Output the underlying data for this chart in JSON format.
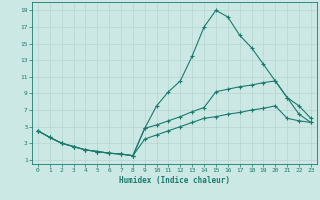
{
  "xlabel": "Humidex (Indice chaleur)",
  "xlim": [
    -0.5,
    23.5
  ],
  "ylim": [
    0.5,
    20
  ],
  "xticks": [
    0,
    1,
    2,
    3,
    4,
    5,
    6,
    7,
    8,
    9,
    10,
    11,
    12,
    13,
    14,
    15,
    16,
    17,
    18,
    19,
    20,
    21,
    22,
    23
  ],
  "yticks": [
    1,
    3,
    5,
    7,
    9,
    11,
    13,
    15,
    17,
    19
  ],
  "bg_color": "#cce8e4",
  "grid_color": "#b8d4d0",
  "line_color": "#1a7a6e",
  "line1_x": [
    0,
    1,
    2,
    3,
    4,
    5,
    6,
    7,
    8,
    9,
    10,
    11,
    12,
    13,
    14,
    15,
    16,
    17,
    18,
    19,
    20,
    21,
    22,
    23
  ],
  "line1_y": [
    4.5,
    3.7,
    3.0,
    2.6,
    2.2,
    2.0,
    1.8,
    1.7,
    1.5,
    4.8,
    7.5,
    9.2,
    10.5,
    13.5,
    17.0,
    19.0,
    18.2,
    16.0,
    14.5,
    12.5,
    10.5,
    8.5,
    6.5,
    5.5
  ],
  "line2_x": [
    0,
    1,
    2,
    3,
    4,
    5,
    6,
    7,
    8,
    9,
    10,
    11,
    12,
    13,
    14,
    15,
    16,
    17,
    18,
    19,
    20,
    21,
    22,
    23
  ],
  "line2_y": [
    4.5,
    3.7,
    3.0,
    2.6,
    2.2,
    2.0,
    1.8,
    1.7,
    1.5,
    4.8,
    5.2,
    5.7,
    6.2,
    6.8,
    7.3,
    9.2,
    9.5,
    9.8,
    10.0,
    10.3,
    10.5,
    8.5,
    7.5,
    6.0
  ],
  "line3_x": [
    0,
    1,
    2,
    3,
    4,
    5,
    6,
    7,
    8,
    9,
    10,
    11,
    12,
    13,
    14,
    15,
    16,
    17,
    18,
    19,
    20,
    21,
    22,
    23
  ],
  "line3_y": [
    4.5,
    3.7,
    3.0,
    2.6,
    2.2,
    2.0,
    1.8,
    1.7,
    1.5,
    3.5,
    4.0,
    4.5,
    5.0,
    5.5,
    6.0,
    6.2,
    6.5,
    6.7,
    7.0,
    7.2,
    7.5,
    6.0,
    5.7,
    5.5
  ]
}
